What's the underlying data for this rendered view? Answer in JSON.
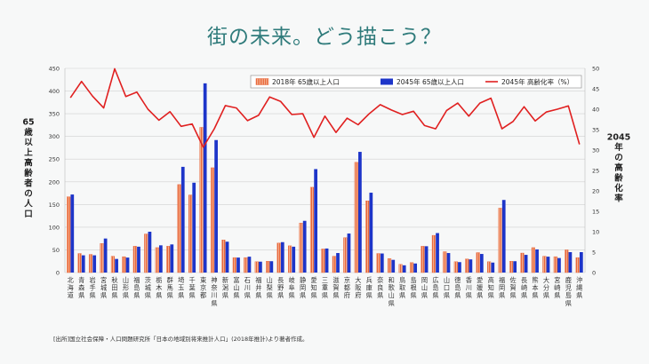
{
  "slide": {
    "title": "街の未来。どう描こう？",
    "source_note": "[出所]国立社会保障・人口問題研究所「日本の地域別将来推計人口」(2018年推計)より著者作成。"
  },
  "chart_data": {
    "type": "bar",
    "title": "",
    "ylabel_left": "65歳以上高齢者の人口",
    "ylabel_right": "2045年の高齢化率",
    "ylim_left": [
      0,
      450
    ],
    "ylim_right": [
      0,
      50
    ],
    "yticks_left": [
      0,
      50,
      100,
      150,
      200,
      250,
      300,
      350,
      400,
      450
    ],
    "yticks_right": [
      0,
      5,
      10,
      15,
      20,
      25,
      30,
      35,
      40,
      45,
      50
    ],
    "legend_position": "top-right",
    "colors": {
      "series_2018": "#e8663a",
      "series_2045": "#1d35c9",
      "line_2045": "#e02020",
      "grid": "#d0d0d0",
      "text": "#333333"
    },
    "categories": [
      "北海道",
      "青森県",
      "岩手県",
      "宮城県",
      "秋田県",
      "山形県",
      "福島県",
      "茨城県",
      "栃木県",
      "群馬県",
      "埼玉県",
      "千葉県",
      "東京都",
      "神奈川県",
      "新潟県",
      "富山県",
      "石川県",
      "福井県",
      "山梨県",
      "長野県",
      "岐阜県",
      "静岡県",
      "愛知県",
      "三重県",
      "滋賀県",
      "京都府",
      "大阪府",
      "兵庫県",
      "奈良県",
      "和歌山県",
      "鳥取県",
      "島根県",
      "岡山県",
      "広島県",
      "山口県",
      "徳島県",
      "香川県",
      "愛媛県",
      "高知県",
      "福岡県",
      "佐賀県",
      "長崎県",
      "熊本県",
      "大分県",
      "宮崎県",
      "鹿児島県",
      "沖縄県"
    ],
    "series": [
      {
        "name": "2018年 65歳以上人口",
        "type": "bar",
        "axis": "left",
        "values": [
          167,
          42,
          40,
          64,
          36,
          35,
          58,
          85,
          55,
          58,
          194,
          171,
          320,
          231,
          72,
          33,
          33,
          24,
          25,
          65,
          59,
          109,
          188,
          52,
          36,
          77,
          243,
          158,
          42,
          31,
          18,
          22,
          58,
          82,
          46,
          24,
          30,
          44,
          24,
          142,
          25,
          43,
          55,
          36,
          35,
          50,
          33
        ]
      },
      {
        "name": "2045年 65歳以上人口",
        "type": "bar",
        "axis": "left",
        "values": [
          172,
          38,
          38,
          75,
          30,
          33,
          57,
          90,
          60,
          62,
          233,
          198,
          417,
          292,
          68,
          33,
          35,
          24,
          25,
          67,
          57,
          114,
          228,
          53,
          43,
          86,
          266,
          176,
          42,
          28,
          16,
          20,
          58,
          87,
          43,
          23,
          29,
          41,
          22,
          160,
          25,
          39,
          51,
          35,
          32,
          45,
          45
        ]
      },
      {
        "name": "2045年 高齢化率（%）",
        "type": "line",
        "axis": "right",
        "values": [
          42.8,
          46.8,
          43.2,
          40.3,
          49.9,
          43.1,
          44.2,
          40.0,
          37.3,
          39.4,
          35.8,
          36.4,
          30.7,
          35.2,
          40.9,
          40.3,
          37.2,
          38.5,
          43.0,
          41.9,
          38.7,
          38.9,
          33.1,
          38.3,
          34.3,
          37.8,
          36.2,
          38.9,
          41.1,
          39.8,
          38.7,
          39.5,
          36.0,
          35.2,
          39.7,
          41.5,
          38.3,
          41.5,
          42.7,
          35.2,
          37.0,
          40.6,
          37.1,
          39.3,
          40.0,
          40.8,
          31.4
        ]
      }
    ]
  }
}
